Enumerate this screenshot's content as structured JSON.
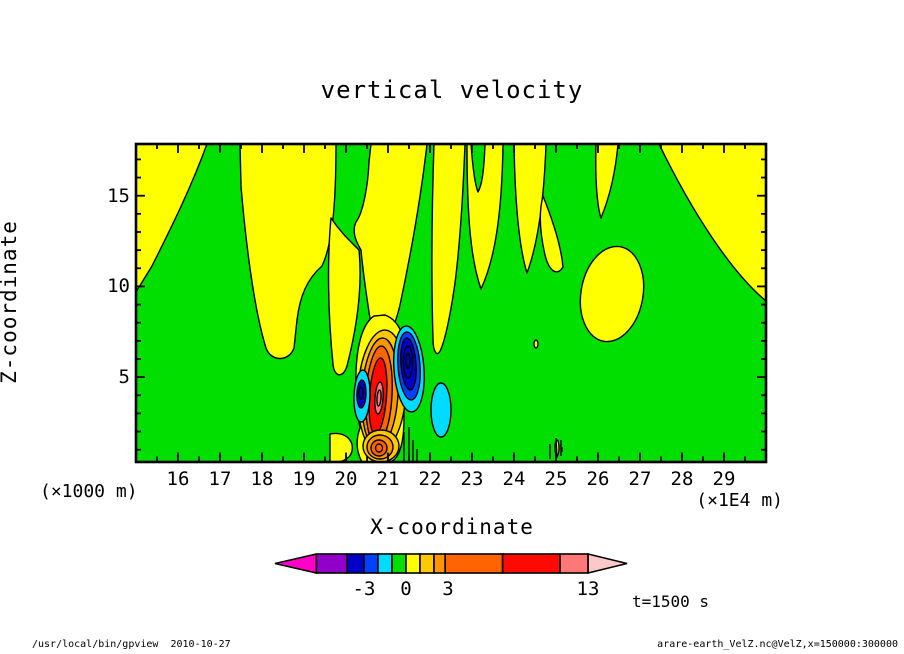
{
  "chart_data": {
    "type": "heatmap",
    "subtype": "filled-contour-xz-section",
    "title": "vertical velocity",
    "xlabel": "X-coordinate",
    "x_unit_label": "(×1E4 m)",
    "ylabel": "Z-coordinate",
    "y_unit_label": "(×1000 m)",
    "x_axis": {
      "range": [
        15,
        30
      ],
      "major_tick_step": 1,
      "minor_tick_step": 0.5,
      "tick_label_values": [
        16,
        17,
        18,
        19,
        20,
        21,
        22,
        23,
        24,
        25,
        26,
        27,
        28,
        29
      ]
    },
    "z_axis": {
      "range": [
        0.35,
        17.85
      ],
      "minor_tick_step": 1,
      "major_ticks": [
        5,
        10,
        15
      ]
    },
    "time_annotation": "t=1500 s",
    "grid": false,
    "legend_position": "bottom-colorbar",
    "field_summary": "Mostly weak field: green (0 band) background with yellow (positive ~0-1) patches along the top and corners; a narrow intense updraft core near x=20.5-21.5, z=2-8 reaching past +13 (orange/red/pink) flanked by downdraft cells below -3 (cyan/blue/navy); an isolated yellow cell near x=26-27, z=9-12.",
    "colorbar": {
      "orientation": "horizontal",
      "tick_labels": [
        {
          "text": "-3",
          "value": -3
        },
        {
          "text": "0",
          "value": 0
        },
        {
          "text": "3",
          "value": 3
        },
        {
          "text": "13",
          "value": 13
        }
      ],
      "segments": [
        {
          "color": "purple",
          "from": -6.4,
          "to": -4.2
        },
        {
          "color": "navy",
          "from": -4.2,
          "to": -3
        },
        {
          "color": "blue",
          "from": -3,
          "to": -2
        },
        {
          "color": "cyan",
          "from": -2,
          "to": -1
        },
        {
          "color": "green",
          "from": -1,
          "to": 0
        },
        {
          "color": "yellow",
          "from": 0,
          "to": 1
        },
        {
          "color": "gold",
          "from": 1,
          "to": 2
        },
        {
          "color": "orange",
          "from": 2,
          "to": 2.8
        },
        {
          "color": "deepOrange",
          "from": 2.8,
          "to": 6.9
        },
        {
          "color": "red",
          "from": 6.9,
          "to": 11
        },
        {
          "color": "salmon",
          "from": 11,
          "to": 13
        }
      ],
      "under_arrow_color": "magenta",
      "over_arrow_color": "lightPink"
    }
  },
  "palette": {
    "green": "#00DF00",
    "yellow": "#FFFF00",
    "cyan": "#00DCFF",
    "blue": "#0041FF",
    "navy": "#0000C8",
    "purple": "#9000C8",
    "magenta": "#FF00C8",
    "gold": "#FFC800",
    "orange": "#FF9600",
    "deepOrange": "#FF6400",
    "red": "#FF0A00",
    "salmon": "#FF7878",
    "lightPink": "#FFC8C8"
  },
  "labels": {
    "title": "vertical velocity",
    "z_axis": "Z-coordinate",
    "x_axis": "X-coordinate",
    "z_unit": "(×1000 m)",
    "x_unit": "(×1E4 m)",
    "time": "t=1500 s"
  },
  "footer": {
    "left": "/usr/local/bin/gpview  2010-10-27",
    "right": "arare-earth_VelZ.nc@VelZ,x=150000:300000"
  }
}
